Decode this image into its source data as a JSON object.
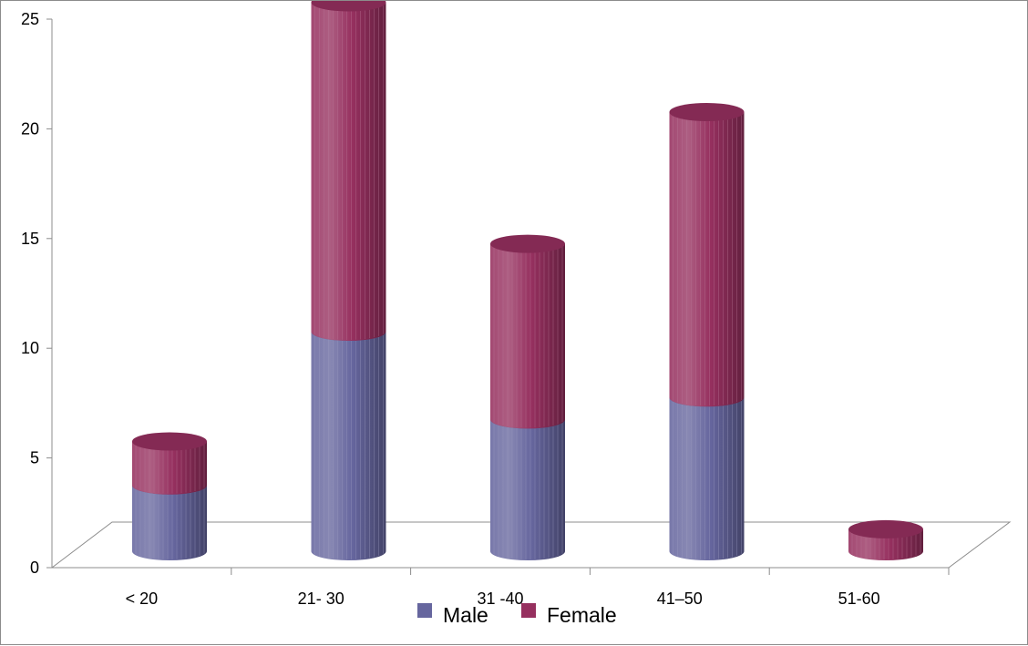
{
  "chart_data": {
    "type": "bar",
    "stacked": true,
    "style": "3d-cylinder",
    "categories": [
      "< 20",
      "21- 30",
      "31 -40",
      "41–50",
      "51-60"
    ],
    "series": [
      {
        "name": "Male",
        "values": [
          3,
          10,
          6,
          7,
          0
        ],
        "color": "#66669e"
      },
      {
        "name": "Female",
        "values": [
          2,
          15,
          8,
          13,
          1
        ],
        "color": "#96305f"
      }
    ],
    "ylim": [
      0,
      25
    ],
    "yticks": [
      0,
      5,
      10,
      15,
      20,
      25
    ],
    "grid": false,
    "legend_position": "bottom"
  }
}
